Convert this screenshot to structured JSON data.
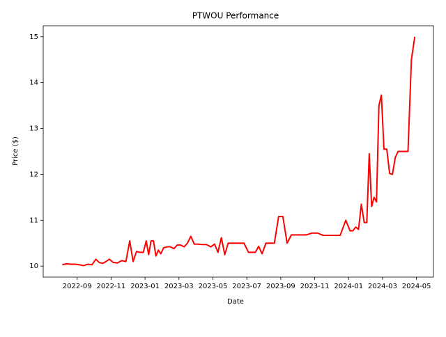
{
  "chart_data": {
    "type": "line",
    "title": "PTWOU Performance",
    "x_label": "Date",
    "y_label": "Price ($)",
    "x": [
      "2022-08",
      "2022-08",
      "2022-08",
      "2022-08",
      "2022-09",
      "2022-09",
      "2022-09",
      "2022-09",
      "2022-10",
      "2022-10",
      "2022-10",
      "2022-10",
      "2022-10",
      "2022-11",
      "2022-11",
      "2022-11",
      "2022-11",
      "2022-12",
      "2022-12",
      "2022-12",
      "2022-12",
      "2022-12",
      "2023-01",
      "2023-01",
      "2023-01",
      "2023-01",
      "2023-01",
      "2023-01",
      "2023-01",
      "2023-02",
      "2023-02",
      "2023-02",
      "2023-02",
      "2023-02",
      "2023-03",
      "2023-03",
      "2023-03",
      "2023-03",
      "2023-03",
      "2023-04",
      "2023-04",
      "2023-04",
      "2023-04",
      "2023-05",
      "2023-05",
      "2023-05",
      "2023-05",
      "2023-05",
      "2023-06",
      "2023-06",
      "2023-06",
      "2023-07",
      "2023-07",
      "2023-07",
      "2023-07",
      "2023-07",
      "2023-08",
      "2023-08",
      "2023-08",
      "2023-08",
      "2023-09",
      "2023-09",
      "2023-09",
      "2023-09",
      "2023-10",
      "2023-10",
      "2023-10",
      "2023-11",
      "2023-11",
      "2023-11",
      "2023-12",
      "2023-12",
      "2023-12",
      "2024-01",
      "2024-01",
      "2024-01",
      "2024-01",
      "2024-01",
      "2024-01",
      "2024-02",
      "2024-02",
      "2024-02",
      "2024-02",
      "2024-02",
      "2024-02",
      "2024-02",
      "2024-03",
      "2024-03",
      "2024-03",
      "2024-03",
      "2024-03",
      "2024-03",
      "2024-04",
      "2024-04",
      "2024-04",
      "2024-04",
      "2024-04"
    ],
    "series": [
      {
        "color": "#ff0000",
        "values": [
          10.03,
          10.05,
          10.04,
          10.04,
          10.03,
          10.01,
          10.04,
          10.03,
          10.15,
          10.08,
          10.06,
          10.1,
          10.15,
          10.08,
          10.07,
          10.12,
          10.1,
          10.55,
          10.1,
          10.32,
          10.3,
          10.3,
          10.55,
          10.25,
          10.55,
          10.55,
          10.22,
          10.35,
          10.27,
          10.4,
          10.42,
          10.42,
          10.38,
          10.46,
          10.46,
          10.42,
          10.5,
          10.65,
          10.48,
          10.48,
          10.47,
          10.47,
          10.42,
          10.48,
          10.3,
          10.62,
          10.25,
          10.5,
          10.5,
          10.5,
          10.5,
          10.3,
          10.3,
          10.3,
          10.43,
          10.27,
          10.5,
          10.5,
          10.5,
          11.08,
          11.08,
          10.5,
          10.68,
          10.68,
          10.68,
          10.68,
          10.72,
          10.72,
          10.67,
          10.67,
          10.67,
          10.67,
          11.0,
          10.77,
          10.77,
          10.85,
          10.8,
          11.35,
          10.95,
          10.95,
          12.45,
          11.3,
          11.5,
          11.4,
          13.5,
          13.73,
          12.55,
          12.55,
          12.02,
          12.0,
          12.37,
          12.5,
          12.5,
          12.5,
          12.5,
          14.5,
          15.0
        ]
      }
    ],
    "xlim": [
      "2022-07",
      "2024-06"
    ],
    "xticks": [
      "2022-09",
      "2022-11",
      "2023-01",
      "2023-03",
      "2023-05",
      "2023-07",
      "2023-09",
      "2023-11",
      "2024-01",
      "2024-03",
      "2024-05"
    ],
    "ylim": [
      9.76,
      15.24
    ],
    "yticks": [
      10,
      11,
      12,
      13,
      14,
      15
    ]
  }
}
